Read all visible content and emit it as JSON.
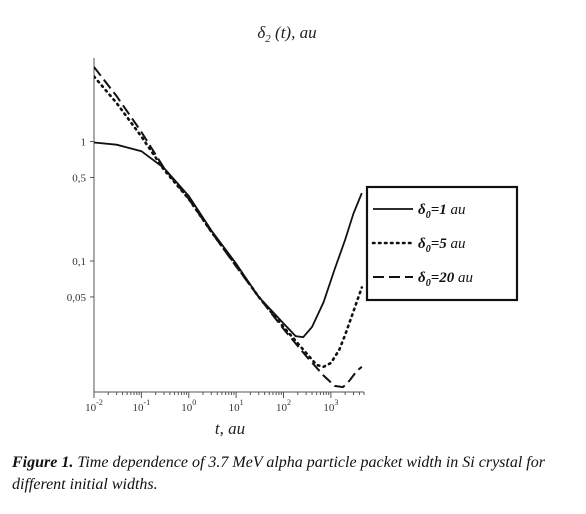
{
  "figure": {
    "caption_label": "Figure 1.",
    "caption_text": "Time dependence of 3.7 MeV alpha particle packet width in Si crystal for different initial widths."
  },
  "chart_data": {
    "type": "line",
    "title": "δ₂(t), au",
    "xlabel": "t, au",
    "ylabel": "",
    "x_scale": "log",
    "y_scale": "log",
    "xlim": [
      0.01,
      5000
    ],
    "ylim": [
      0.008,
      5
    ],
    "grid": false,
    "legend_position": "right",
    "x_ticks": [
      {
        "value": 0.01,
        "base": "10",
        "exp": "-2"
      },
      {
        "value": 0.1,
        "base": "10",
        "exp": "-1"
      },
      {
        "value": 1,
        "base": "10",
        "exp": "0"
      },
      {
        "value": 10,
        "base": "10",
        "exp": "1"
      },
      {
        "value": 100,
        "base": "10",
        "exp": "2"
      },
      {
        "value": 1000,
        "base": "10",
        "exp": "3"
      }
    ],
    "y_ticks": [
      {
        "value": 1,
        "label": "1"
      },
      {
        "value": 0.5,
        "label": "0,5"
      },
      {
        "value": 0.1,
        "label": "0,1"
      },
      {
        "value": 0.05,
        "label": "0,05"
      }
    ],
    "series": [
      {
        "name": "δ₀=1 au",
        "legend_symbol": "δ",
        "legend_sub": "0",
        "legend_value": "=1",
        "legend_unit": "au",
        "style": "solid",
        "points": [
          [
            0.01,
            0.98
          ],
          [
            0.03,
            0.94
          ],
          [
            0.1,
            0.83
          ],
          [
            0.3,
            0.6
          ],
          [
            1,
            0.35
          ],
          [
            3,
            0.18
          ],
          [
            10,
            0.095
          ],
          [
            30,
            0.05
          ],
          [
            100,
            0.03
          ],
          [
            180,
            0.0235
          ],
          [
            260,
            0.023
          ],
          [
            400,
            0.028
          ],
          [
            700,
            0.045
          ],
          [
            1200,
            0.085
          ],
          [
            2000,
            0.15
          ],
          [
            3000,
            0.25
          ],
          [
            4500,
            0.37
          ]
        ]
      },
      {
        "name": "δ₀=5 au",
        "legend_symbol": "δ",
        "legend_sub": "0",
        "legend_value": "=5",
        "legend_unit": "au",
        "style": "dotted",
        "points": [
          [
            0.01,
            3.5
          ],
          [
            0.03,
            2.1
          ],
          [
            0.1,
            1.1
          ],
          [
            0.3,
            0.58
          ],
          [
            1,
            0.33
          ],
          [
            3,
            0.175
          ],
          [
            10,
            0.092
          ],
          [
            30,
            0.05
          ],
          [
            100,
            0.028
          ],
          [
            300,
            0.017
          ],
          [
            500,
            0.0135
          ],
          [
            700,
            0.013
          ],
          [
            1000,
            0.014
          ],
          [
            1500,
            0.018
          ],
          [
            2000,
            0.024
          ],
          [
            3000,
            0.038
          ],
          [
            4500,
            0.06
          ]
        ]
      },
      {
        "name": "δ₀=20 au",
        "legend_symbol": "δ",
        "legend_sub": "0",
        "legend_value": "=20",
        "legend_unit": "au",
        "style": "dashed",
        "points": [
          [
            0.01,
            4.2
          ],
          [
            0.03,
            2.4
          ],
          [
            0.1,
            1.2
          ],
          [
            0.3,
            0.6
          ],
          [
            1,
            0.33
          ],
          [
            3,
            0.175
          ],
          [
            10,
            0.09
          ],
          [
            30,
            0.05
          ],
          [
            100,
            0.027
          ],
          [
            300,
            0.016
          ],
          [
            700,
            0.011
          ],
          [
            1200,
            0.009
          ],
          [
            1800,
            0.0088
          ],
          [
            2500,
            0.01
          ],
          [
            3500,
            0.012
          ],
          [
            4500,
            0.013
          ]
        ]
      }
    ]
  }
}
